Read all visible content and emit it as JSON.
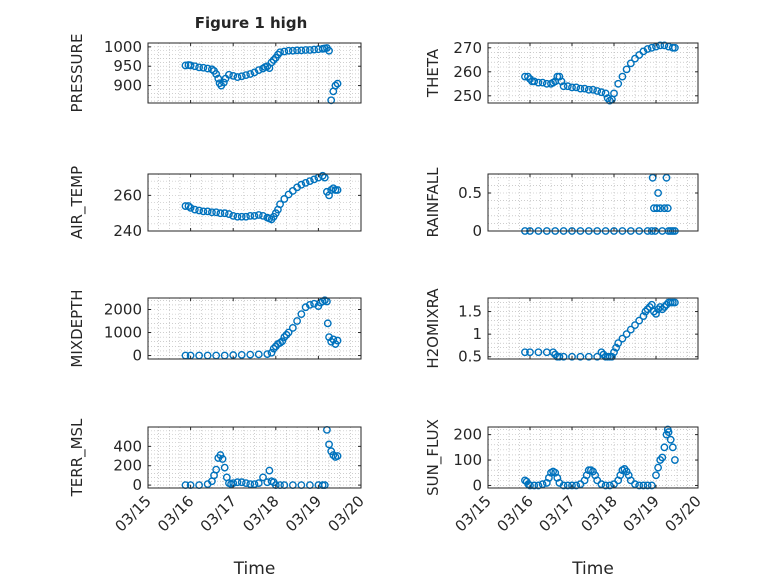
{
  "figure": {
    "title": "Figure 1 high"
  },
  "style": {
    "marker_color": "#0072BD",
    "axis_color": "#262626",
    "grid_color": "#b0b0b0"
  },
  "chart_data": [
    {
      "type": "scatter",
      "name": "pressure",
      "ylabel": "PRESSURE",
      "ylim": [
        855,
        1010
      ],
      "yticks": [
        900,
        950,
        1000
      ],
      "x": [
        15.88,
        15.95,
        16.0,
        16.1,
        16.2,
        16.3,
        16.4,
        16.5,
        16.55,
        16.6,
        16.65,
        16.68,
        16.72,
        16.78,
        16.82,
        16.9,
        17.0,
        17.1,
        17.2,
        17.3,
        17.4,
        17.5,
        17.6,
        17.7,
        17.75,
        17.8,
        17.85,
        17.9,
        17.95,
        18.0,
        18.05,
        18.1,
        18.2,
        18.3,
        18.4,
        18.5,
        18.6,
        18.7,
        18.8,
        18.9,
        19.0,
        19.1,
        19.15,
        19.2,
        19.25,
        19.3,
        19.35,
        19.4,
        19.45
      ],
      "y": [
        952,
        953,
        952,
        950,
        947,
        946,
        944,
        942,
        938,
        930,
        918,
        906,
        900,
        908,
        918,
        928,
        925,
        922,
        924,
        927,
        930,
        934,
        940,
        944,
        948,
        950,
        945,
        960,
        966,
        972,
        980,
        986,
        988,
        990,
        990,
        991,
        991,
        992,
        992,
        993,
        994,
        995,
        996,
        997,
        990,
        862,
        885,
        900,
        905
      ]
    },
    {
      "type": "scatter",
      "name": "theta",
      "ylabel": "THETA",
      "ylim": [
        247,
        272
      ],
      "yticks": [
        250,
        260,
        270
      ],
      "x": [
        15.88,
        15.95,
        16.0,
        16.05,
        16.1,
        16.2,
        16.3,
        16.4,
        16.5,
        16.55,
        16.6,
        16.65,
        16.7,
        16.75,
        16.8,
        16.9,
        17.0,
        17.1,
        17.2,
        17.3,
        17.4,
        17.5,
        17.6,
        17.7,
        17.8,
        17.85,
        17.9,
        17.95,
        18.0,
        18.1,
        18.2,
        18.3,
        18.4,
        18.5,
        18.6,
        18.7,
        18.8,
        18.9,
        19.0,
        19.1,
        19.2,
        19.3,
        19.4,
        19.45
      ],
      "y": [
        258,
        258,
        257,
        256,
        256,
        255.5,
        255.5,
        255,
        255,
        255.5,
        256,
        258,
        258,
        256,
        254,
        254,
        253.5,
        253.5,
        253,
        253,
        252.5,
        252.5,
        252,
        251.5,
        251,
        249,
        248,
        248.5,
        251,
        255,
        258,
        261,
        263.5,
        265.5,
        267,
        268.5,
        269.5,
        270,
        270.5,
        271,
        271,
        270.5,
        270,
        270
      ]
    },
    {
      "type": "scatter",
      "name": "air_temp",
      "ylabel": "AIR_TEMP",
      "ylim": [
        240,
        272
      ],
      "yticks": [
        240,
        260
      ],
      "x": [
        15.88,
        15.95,
        16.0,
        16.1,
        16.2,
        16.3,
        16.4,
        16.5,
        16.6,
        16.7,
        16.8,
        16.9,
        17.0,
        17.1,
        17.2,
        17.3,
        17.4,
        17.5,
        17.6,
        17.7,
        17.8,
        17.85,
        17.9,
        17.95,
        18.0,
        18.05,
        18.1,
        18.2,
        18.3,
        18.4,
        18.5,
        18.6,
        18.7,
        18.8,
        18.9,
        19.0,
        19.1,
        19.15,
        19.2,
        19.25,
        19.3,
        19.35,
        19.4,
        19.45
      ],
      "y": [
        254,
        254,
        253,
        252,
        251.5,
        251,
        251,
        250.5,
        250.5,
        250,
        250,
        249.5,
        248.5,
        248,
        248,
        248,
        248.5,
        248.5,
        249,
        248.5,
        247.5,
        247,
        246.5,
        248,
        250,
        252,
        255,
        258,
        260.5,
        262.5,
        264.5,
        266,
        267,
        268,
        269,
        270,
        271,
        270,
        262,
        260,
        263,
        264,
        263,
        263
      ]
    },
    {
      "type": "scatter",
      "name": "rainfall",
      "ylabel": "RAINFALL",
      "ylim": [
        0,
        0.75
      ],
      "yticks": [
        0,
        0.5
      ],
      "x": [
        15.88,
        16.0,
        16.2,
        16.4,
        16.6,
        16.8,
        17.0,
        17.2,
        17.4,
        17.6,
        17.8,
        18.0,
        18.2,
        18.4,
        18.6,
        18.8,
        18.9,
        18.92,
        18.95,
        18.98,
        19.02,
        19.05,
        19.1,
        19.15,
        19.2,
        19.25,
        19.28,
        19.3,
        19.35,
        19.4,
        19.45
      ],
      "y": [
        0,
        0,
        0,
        0,
        0,
        0,
        0,
        0,
        0,
        0,
        0,
        0,
        0,
        0,
        0,
        0,
        0,
        0.7,
        0.3,
        0,
        0.3,
        0.5,
        0.3,
        0,
        0.3,
        0.7,
        0.3,
        0,
        0,
        0,
        0
      ]
    },
    {
      "type": "scatter",
      "name": "mixdepth",
      "ylabel": "MIXDEPTH",
      "ylim": [
        -150,
        2500
      ],
      "yticks": [
        0,
        1000,
        2000
      ],
      "x": [
        15.88,
        16.0,
        16.2,
        16.4,
        16.6,
        16.8,
        17.0,
        17.2,
        17.4,
        17.6,
        17.8,
        17.9,
        17.95,
        18.0,
        18.05,
        18.1,
        18.15,
        18.2,
        18.25,
        18.3,
        18.4,
        18.5,
        18.6,
        18.7,
        18.8,
        18.9,
        19.0,
        19.05,
        19.1,
        19.15,
        19.2,
        19.22,
        19.25,
        19.3,
        19.35,
        19.4,
        19.45
      ],
      "y": [
        0,
        0,
        0,
        0,
        0,
        0,
        20,
        30,
        40,
        50,
        60,
        120,
        300,
        400,
        500,
        550,
        620,
        800,
        900,
        1000,
        1200,
        1500,
        1800,
        2100,
        2200,
        2250,
        2150,
        2300,
        2350,
        2400,
        2350,
        1400,
        800,
        600,
        700,
        500,
        650
      ]
    },
    {
      "type": "scatter",
      "name": "h2omixra",
      "ylabel": "H2OMIXRA",
      "ylim": [
        0.45,
        1.8
      ],
      "yticks": [
        0.5,
        1,
        1.5
      ],
      "x": [
        15.88,
        16.0,
        16.2,
        16.4,
        16.55,
        16.6,
        16.65,
        16.7,
        16.8,
        17.0,
        17.2,
        17.4,
        17.6,
        17.7,
        17.75,
        17.8,
        17.85,
        17.9,
        17.95,
        18.0,
        18.05,
        18.1,
        18.2,
        18.3,
        18.4,
        18.5,
        18.6,
        18.7,
        18.75,
        18.8,
        18.85,
        18.9,
        18.95,
        19.0,
        19.05,
        19.1,
        19.15,
        19.2,
        19.25,
        19.3,
        19.35,
        19.4,
        19.45
      ],
      "y": [
        0.6,
        0.6,
        0.6,
        0.6,
        0.6,
        0.55,
        0.5,
        0.5,
        0.5,
        0.5,
        0.5,
        0.5,
        0.5,
        0.6,
        0.55,
        0.5,
        0.5,
        0.5,
        0.5,
        0.6,
        0.7,
        0.8,
        0.9,
        1.0,
        1.1,
        1.2,
        1.3,
        1.4,
        1.5,
        1.55,
        1.6,
        1.65,
        1.5,
        1.45,
        1.55,
        1.6,
        1.55,
        1.6,
        1.65,
        1.7,
        1.7,
        1.7,
        1.7
      ]
    },
    {
      "type": "scatter",
      "name": "terr_msl",
      "ylabel": "TERR_MSL",
      "ylim": [
        -30,
        600
      ],
      "yticks": [
        0,
        200,
        400
      ],
      "x": [
        15.88,
        16.0,
        16.2,
        16.4,
        16.5,
        16.55,
        16.6,
        16.65,
        16.7,
        16.75,
        16.8,
        16.85,
        16.9,
        16.95,
        17.0,
        17.1,
        17.2,
        17.3,
        17.4,
        17.5,
        17.6,
        17.7,
        17.8,
        17.85,
        17.9,
        17.95,
        18.0,
        18.1,
        18.2,
        18.4,
        18.6,
        18.8,
        19.0,
        19.1,
        19.15,
        19.2,
        19.25,
        19.3,
        19.35,
        19.4,
        19.45
      ],
      "y": [
        0,
        0,
        0,
        10,
        40,
        100,
        160,
        280,
        310,
        270,
        180,
        80,
        20,
        10,
        20,
        30,
        30,
        20,
        10,
        10,
        20,
        80,
        30,
        150,
        40,
        30,
        0,
        0,
        0,
        0,
        0,
        0,
        0,
        0,
        0,
        570,
        420,
        350,
        310,
        290,
        300
      ]
    },
    {
      "type": "scatter",
      "name": "sun_flux",
      "ylabel": "SUN_FLUX",
      "ylim": [
        -10,
        230
      ],
      "yticks": [
        0,
        100,
        200
      ],
      "x": [
        15.88,
        15.92,
        15.96,
        16.0,
        16.1,
        16.2,
        16.3,
        16.4,
        16.45,
        16.5,
        16.55,
        16.6,
        16.65,
        16.7,
        16.8,
        16.9,
        17.0,
        17.1,
        17.2,
        17.3,
        17.35,
        17.4,
        17.45,
        17.5,
        17.55,
        17.6,
        17.7,
        17.8,
        17.9,
        18.0,
        18.1,
        18.15,
        18.2,
        18.25,
        18.3,
        18.35,
        18.4,
        18.5,
        18.6,
        18.7,
        18.8,
        18.9,
        19.0,
        19.05,
        19.1,
        19.15,
        19.2,
        19.25,
        19.28,
        19.3,
        19.35,
        19.4,
        19.45
      ],
      "y": [
        20,
        15,
        5,
        0,
        0,
        0,
        5,
        10,
        30,
        50,
        55,
        50,
        30,
        10,
        0,
        0,
        0,
        0,
        5,
        20,
        40,
        60,
        60,
        55,
        40,
        20,
        5,
        0,
        0,
        5,
        20,
        40,
        60,
        65,
        55,
        40,
        20,
        5,
        0,
        0,
        0,
        0,
        40,
        70,
        100,
        110,
        150,
        200,
        220,
        210,
        180,
        150,
        100
      ]
    }
  ],
  "xaxis": {
    "label": "Time",
    "xlim": [
      15,
      20
    ],
    "tick_values": [
      15,
      16,
      17,
      18,
      19,
      20
    ],
    "tick_labels": [
      "03/15",
      "03/16",
      "03/17",
      "03/18",
      "03/19",
      "03/20"
    ]
  }
}
